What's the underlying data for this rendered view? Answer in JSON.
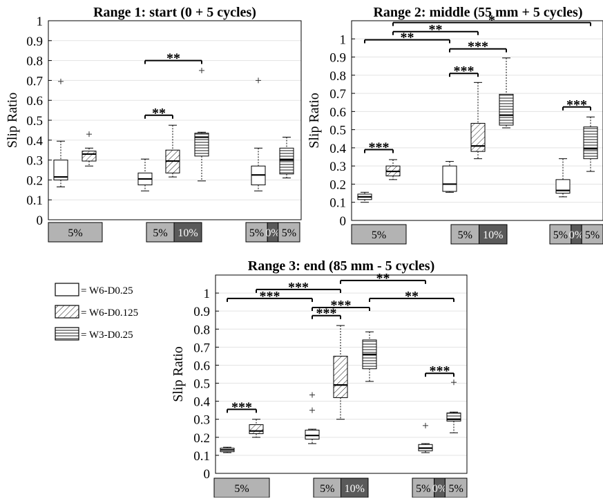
{
  "chart_data": [
    {
      "type": "box",
      "title": "Range 1: start (0 + 5 cycles)",
      "ylabel": "Slip Ratio",
      "ylim": [
        0,
        1
      ],
      "yticks": [
        "0",
        "0.1",
        "0.2",
        "0.3",
        "0.4",
        "0.5",
        "0.6",
        "0.7",
        "0.8",
        "0.9",
        "1"
      ],
      "groups": [
        {
          "label_cells": [
            {
              "text": "5%",
              "shade": "light"
            }
          ],
          "boxes": [
            {
              "series": "W6-D0.25",
              "whisker_low": 0.165,
              "q1": 0.2,
              "median": 0.215,
              "q3": 0.3,
              "whisker_high": 0.395,
              "outliers": [
                0.695
              ]
            },
            {
              "series": "W6-D0.125",
              "whisker_low": 0.27,
              "q1": 0.295,
              "median": 0.33,
              "q3": 0.345,
              "whisker_high": 0.36,
              "outliers": [
                0.43
              ]
            }
          ]
        },
        {
          "label_cells": [
            {
              "text": "5%",
              "shade": "light"
            },
            {
              "text": "10%",
              "shade": "dark"
            }
          ],
          "boxes": [
            {
              "series": "W6-D0.25",
              "whisker_low": 0.145,
              "q1": 0.175,
              "median": 0.205,
              "q3": 0.235,
              "whisker_high": 0.305,
              "outliers": []
            },
            {
              "series": "W6-D0.125",
              "whisker_low": 0.215,
              "q1": 0.235,
              "median": 0.295,
              "q3": 0.35,
              "whisker_high": 0.475,
              "outliers": []
            },
            {
              "series": "W3-D0.25",
              "whisker_low": 0.195,
              "q1": 0.32,
              "median": 0.415,
              "q3": 0.435,
              "whisker_high": 0.44,
              "outliers": [
                0.75
              ]
            }
          ]
        },
        {
          "label_cells": [
            {
              "text": "5%",
              "shade": "light"
            },
            {
              "text": "0%",
              "shade": "dark"
            },
            {
              "text": "5%",
              "shade": "light"
            }
          ],
          "boxes": [
            {
              "series": "W6-D0.25",
              "whisker_low": 0.145,
              "q1": 0.175,
              "median": 0.225,
              "q3": 0.27,
              "whisker_high": 0.36,
              "outliers": [
                0.7
              ]
            },
            {
              "series": "W3-D0.25",
              "whisker_low": 0.21,
              "q1": 0.23,
              "median": 0.3,
              "q3": 0.36,
              "whisker_high": 0.415,
              "outliers": []
            }
          ]
        }
      ],
      "significance": [
        {
          "from": [
            1,
            0
          ],
          "to": [
            1,
            1
          ],
          "y": 0.525,
          "label": "**"
        },
        {
          "from": [
            1,
            0
          ],
          "to": [
            1,
            2
          ],
          "y": 0.8,
          "label": "**"
        }
      ]
    },
    {
      "type": "box",
      "title": "Range 2: middle (55 mm + 5 cycles)",
      "ylabel": "Slip Ratio",
      "ylim": [
        0,
        1.1
      ],
      "yticks": [
        "0",
        "0.1",
        "0.2",
        "0.3",
        "0.4",
        "0.5",
        "0.6",
        "0.7",
        "0.8",
        "0.9",
        "1"
      ],
      "groups": [
        {
          "label_cells": [
            {
              "text": "5%",
              "shade": "light"
            }
          ],
          "boxes": [
            {
              "series": "W6-D0.25",
              "whisker_low": 0.1,
              "q1": 0.115,
              "median": 0.13,
              "q3": 0.145,
              "whisker_high": 0.155,
              "outliers": []
            },
            {
              "series": "W6-D0.125",
              "whisker_low": 0.225,
              "q1": 0.245,
              "median": 0.27,
              "q3": 0.3,
              "whisker_high": 0.335,
              "outliers": []
            }
          ]
        },
        {
          "label_cells": [
            {
              "text": "5%",
              "shade": "light"
            },
            {
              "text": "10%",
              "shade": "dark"
            }
          ],
          "boxes": [
            {
              "series": "W6-D0.25",
              "whisker_low": 0.155,
              "q1": 0.16,
              "median": 0.2,
              "q3": 0.3,
              "whisker_high": 0.325,
              "outliers": []
            },
            {
              "series": "W6-D0.125",
              "whisker_low": 0.34,
              "q1": 0.38,
              "median": 0.41,
              "q3": 0.535,
              "whisker_high": 0.76,
              "outliers": []
            },
            {
              "series": "W3-D0.25",
              "whisker_low": 0.51,
              "q1": 0.525,
              "median": 0.58,
              "q3": 0.695,
              "whisker_high": 0.895,
              "outliers": []
            }
          ]
        },
        {
          "label_cells": [
            {
              "text": "5%",
              "shade": "light"
            },
            {
              "text": "0%",
              "shade": "dark"
            },
            {
              "text": "5%",
              "shade": "light"
            }
          ],
          "boxes": [
            {
              "series": "W6-D0.25",
              "whisker_low": 0.13,
              "q1": 0.15,
              "median": 0.165,
              "q3": 0.225,
              "whisker_high": 0.34,
              "outliers": []
            },
            {
              "series": "W3-D0.25",
              "whisker_low": 0.27,
              "q1": 0.34,
              "median": 0.395,
              "q3": 0.515,
              "whisker_high": 0.57,
              "outliers": []
            }
          ]
        }
      ],
      "significance": [
        {
          "from": [
            0,
            0
          ],
          "to": [
            0,
            1
          ],
          "y": 0.39,
          "label": "***"
        },
        {
          "from": [
            1,
            0
          ],
          "to": [
            1,
            1
          ],
          "y": 0.81,
          "label": "***"
        },
        {
          "from": [
            1,
            0
          ],
          "to": [
            1,
            2
          ],
          "y": 0.945,
          "label": "***"
        },
        {
          "from": [
            0,
            0
          ],
          "to": [
            1,
            0
          ],
          "y": 0.995,
          "label": "**"
        },
        {
          "from": [
            0,
            1
          ],
          "to": [
            1,
            1
          ],
          "y": 1.04,
          "label": "**"
        },
        {
          "from": [
            0,
            1
          ],
          "to": [
            2,
            1
          ],
          "y": 1.09,
          "label": "*"
        },
        {
          "from": [
            2,
            0
          ],
          "to": [
            2,
            1
          ],
          "y": 0.625,
          "label": "***"
        }
      ]
    },
    {
      "type": "box",
      "title": "Range 3: end (85 mm - 5 cycles)",
      "ylabel": "Slip Ratio",
      "ylim": [
        0,
        1.1
      ],
      "yticks": [
        "0",
        "0.1",
        "0.2",
        "0.3",
        "0.4",
        "0.5",
        "0.6",
        "0.7",
        "0.8",
        "0.9",
        "1"
      ],
      "groups": [
        {
          "label_cells": [
            {
              "text": "5%",
              "shade": "light"
            }
          ],
          "boxes": [
            {
              "series": "W6-D0.25",
              "whisker_low": 0.115,
              "q1": 0.12,
              "median": 0.13,
              "q3": 0.14,
              "whisker_high": 0.145,
              "outliers": []
            },
            {
              "series": "W6-D0.125",
              "whisker_low": 0.2,
              "q1": 0.22,
              "median": 0.235,
              "q3": 0.27,
              "whisker_high": 0.3,
              "outliers": []
            }
          ]
        },
        {
          "label_cells": [
            {
              "text": "5%",
              "shade": "light"
            },
            {
              "text": "10%",
              "shade": "dark"
            }
          ],
          "boxes": [
            {
              "series": "W6-D0.25",
              "whisker_low": 0.165,
              "q1": 0.19,
              "median": 0.21,
              "q3": 0.24,
              "whisker_high": 0.245,
              "outliers": [
                0.35,
                0.435
              ]
            },
            {
              "series": "W6-D0.125",
              "whisker_low": 0.3,
              "q1": 0.42,
              "median": 0.49,
              "q3": 0.65,
              "whisker_high": 0.82,
              "outliers": []
            },
            {
              "series": "W3-D0.25",
              "whisker_low": 0.51,
              "q1": 0.58,
              "median": 0.66,
              "q3": 0.74,
              "whisker_high": 0.785,
              "outliers": []
            }
          ]
        },
        {
          "label_cells": [
            {
              "text": "5%",
              "shade": "light"
            },
            {
              "text": "0%",
              "shade": "dark"
            },
            {
              "text": "5%",
              "shade": "light"
            }
          ],
          "boxes": [
            {
              "series": "W6-D0.25",
              "whisker_low": 0.115,
              "q1": 0.125,
              "median": 0.14,
              "q3": 0.16,
              "whisker_high": 0.165,
              "outliers": [
                0.265
              ]
            },
            {
              "series": "W3-D0.25",
              "whisker_low": 0.225,
              "q1": 0.29,
              "median": 0.3,
              "q3": 0.335,
              "whisker_high": 0.34,
              "outliers": [
                0.505
              ]
            }
          ]
        }
      ],
      "significance": [
        {
          "from": [
            0,
            0
          ],
          "to": [
            0,
            1
          ],
          "y": 0.355,
          "label": "***"
        },
        {
          "from": [
            1,
            0
          ],
          "to": [
            1,
            1
          ],
          "y": 0.875,
          "label": "***"
        },
        {
          "from": [
            1,
            0
          ],
          "to": [
            1,
            2
          ],
          "y": 0.92,
          "label": "***"
        },
        {
          "from": [
            0,
            0
          ],
          "to": [
            1,
            0
          ],
          "y": 0.97,
          "label": "***"
        },
        {
          "from": [
            0,
            1
          ],
          "to": [
            1,
            1
          ],
          "y": 1.02,
          "label": "***"
        },
        {
          "from": [
            1,
            1
          ],
          "to": [
            2,
            0
          ],
          "y": 1.07,
          "label": "**"
        },
        {
          "from": [
            1,
            2
          ],
          "to": [
            2,
            1
          ],
          "y": 0.97,
          "label": "**"
        },
        {
          "from": [
            2,
            0
          ],
          "to": [
            2,
            1
          ],
          "y": 0.555,
          "label": "***"
        }
      ]
    }
  ],
  "legend": [
    {
      "series": "W6-D0.25",
      "label": "= W6-D0.25",
      "pattern": "plain"
    },
    {
      "series": "W6-D0.125",
      "label": "= W6-D0.125",
      "pattern": "diagonal"
    },
    {
      "series": "W3-D0.25",
      "label": "= W3-D0.25",
      "pattern": "horizontal"
    }
  ],
  "colors": {
    "light_cell": "#b3b3b3",
    "dark_cell": "#5a5a5a",
    "grid": "#e3e3e3",
    "ink": "#000000"
  }
}
